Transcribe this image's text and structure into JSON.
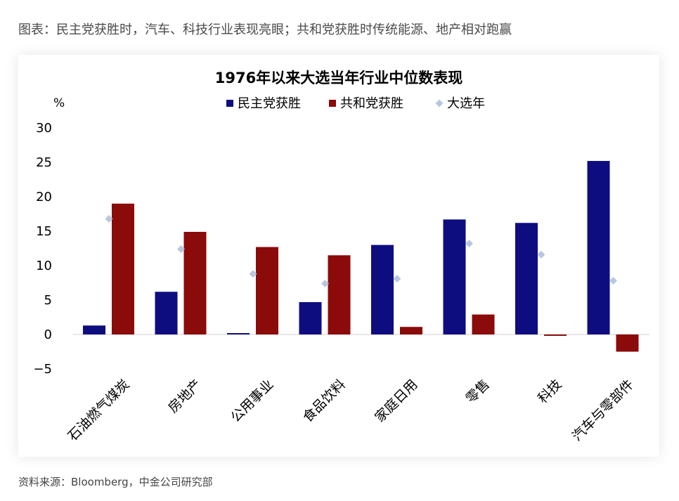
{
  "heading": "图表：民主党获胜时，汽车、科技行业表现亮眼；共和党获胜时传统能源、地产相对跑赢",
  "source": "资料来源：Bloomberg，中金公司研究部",
  "colors": {
    "dem": "#0d0d80",
    "rep": "#8b0a0a",
    "election": "#b8c7e0",
    "axis": "#d9d9d9"
  },
  "chart_data": {
    "type": "bar",
    "title": "1976年以来大选当年行业中位数表现",
    "ylabel": "%",
    "ylim": [
      -5,
      30
    ],
    "yticks": [
      -5,
      0,
      5,
      10,
      15,
      20,
      25,
      30
    ],
    "grid": false,
    "legend_position": "top",
    "categories": [
      "石油燃气煤炭",
      "房地产",
      "公用事业",
      "食品饮料",
      "家庭日用",
      "零售",
      "科技",
      "汽车与零部件"
    ],
    "series": [
      {
        "name": "民主党获胜",
        "kind": "bar",
        "values": [
          1.3,
          6.2,
          0.2,
          4.7,
          13.0,
          16.7,
          16.2,
          25.2
        ]
      },
      {
        "name": "共和党获胜",
        "kind": "bar",
        "values": [
          19.0,
          14.9,
          12.7,
          11.5,
          1.1,
          2.9,
          -0.2,
          -2.5
        ]
      },
      {
        "name": "大选年",
        "kind": "marker",
        "values": [
          16.8,
          12.4,
          8.8,
          7.4,
          8.1,
          13.2,
          11.6,
          7.8
        ]
      }
    ]
  }
}
